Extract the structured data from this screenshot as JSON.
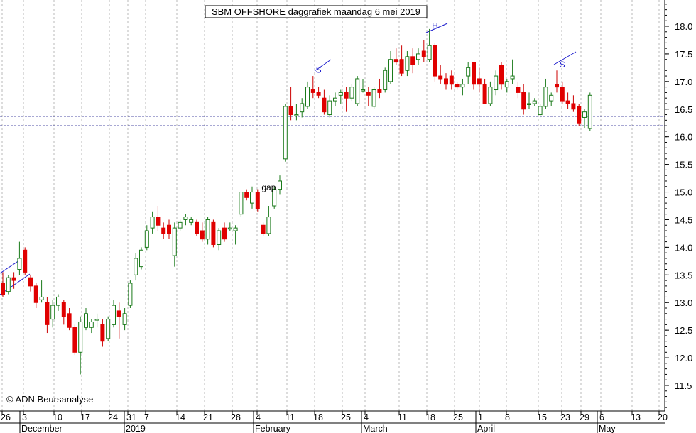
{
  "chart_data": {
    "type": "candlestick",
    "title": "SBM OFFSHORE daggrafiek maandag 6 mei 2019",
    "copyright": "© ADN Beursanalyse",
    "ylim": [
      11.1,
      18.5
    ],
    "y_ticks": [
      "11.5",
      "12.0",
      "12.5",
      "13.0",
      "13.5",
      "14.0",
      "14.5",
      "15.0",
      "15.5",
      "16.0",
      "16.5",
      "17.0",
      "17.5",
      "18.0"
    ],
    "x_ticks": [
      "26",
      "3",
      "10",
      "17",
      "24",
      "31",
      "7",
      "14",
      "21",
      "28",
      "4",
      "11",
      "18",
      "25",
      "4",
      "11",
      "18",
      "25",
      "1",
      "8",
      "15",
      "23",
      "29",
      "6",
      "13",
      "20"
    ],
    "months": [
      {
        "label": "December",
        "tick_index": 1
      },
      {
        "label": "2019",
        "tick_index": 5
      },
      {
        "label": "February",
        "tick_index": 10
      },
      {
        "label": "March",
        "tick_index": 14
      },
      {
        "label": "April",
        "tick_index": 18
      },
      {
        "label": "May",
        "tick_index": 23
      }
    ],
    "annotations": [
      {
        "text": "gap",
        "date_index": 48
      },
      {
        "text": "S",
        "date_index": 57
      },
      {
        "text": "H",
        "date_index": 78
      },
      {
        "text": "S",
        "date_index": 101
      }
    ],
    "support_lines": [
      12.92,
      16.2,
      16.37
    ],
    "grid": true,
    "candles": [
      [
        13.35,
        13.55,
        13.1,
        13.15
      ],
      [
        13.2,
        13.5,
        13.15,
        13.45
      ],
      [
        13.45,
        13.55,
        13.25,
        13.4
      ],
      [
        13.6,
        14.1,
        13.5,
        13.8
      ],
      [
        13.95,
        14.0,
        13.5,
        13.55
      ],
      [
        13.45,
        13.5,
        13.2,
        13.3
      ],
      [
        13.3,
        13.35,
        12.9,
        13.0
      ],
      [
        13.05,
        13.4,
        13.0,
        13.1
      ],
      [
        13.0,
        13.1,
        12.45,
        12.6
      ],
      [
        12.7,
        13.05,
        12.55,
        12.95
      ],
      [
        12.95,
        13.15,
        12.85,
        13.1
      ],
      [
        13.0,
        13.05,
        12.6,
        12.75
      ],
      [
        12.8,
        12.9,
        12.5,
        12.55
      ],
      [
        12.55,
        12.6,
        12.05,
        12.1
      ],
      [
        12.1,
        12.75,
        11.7,
        12.65
      ],
      [
        12.55,
        12.9,
        12.5,
        12.8
      ],
      [
        12.55,
        12.7,
        12.45,
        12.65
      ],
      [
        12.7,
        12.8,
        12.55,
        12.7
      ],
      [
        12.6,
        12.7,
        12.2,
        12.3
      ],
      [
        12.35,
        12.75,
        12.3,
        12.7
      ],
      [
        12.6,
        13.05,
        12.55,
        12.95
      ],
      [
        12.85,
        13.0,
        12.35,
        12.75
      ],
      [
        12.6,
        12.9,
        12.5,
        12.8
      ],
      [
        12.95,
        13.4,
        12.9,
        13.35
      ],
      [
        13.5,
        13.9,
        13.4,
        13.8
      ],
      [
        13.65,
        14.0,
        13.6,
        13.95
      ],
      [
        14.0,
        14.4,
        13.95,
        14.3
      ],
      [
        14.35,
        14.65,
        14.25,
        14.55
      ],
      [
        14.55,
        14.75,
        14.3,
        14.4
      ],
      [
        14.35,
        14.45,
        14.15,
        14.25
      ],
      [
        14.4,
        14.5,
        14.15,
        14.25
      ],
      [
        13.85,
        14.45,
        13.65,
        14.35
      ],
      [
        14.35,
        14.5,
        14.3,
        14.45
      ],
      [
        14.5,
        14.6,
        14.4,
        14.55
      ],
      [
        14.45,
        14.55,
        14.4,
        14.5
      ],
      [
        14.45,
        14.5,
        14.2,
        14.25
      ],
      [
        14.3,
        14.45,
        14.1,
        14.15
      ],
      [
        14.15,
        14.55,
        14.05,
        14.5
      ],
      [
        14.45,
        14.5,
        14.0,
        14.05
      ],
      [
        14.05,
        14.35,
        13.95,
        14.3
      ],
      [
        14.35,
        14.45,
        14.1,
        14.15
      ],
      [
        14.35,
        14.45,
        14.3,
        14.35
      ],
      [
        14.3,
        14.4,
        14.05,
        14.35
      ],
      [
        14.6,
        15.0,
        14.55,
        15.0
      ],
      [
        15.0,
        15.05,
        14.85,
        14.9
      ],
      [
        14.8,
        15.1,
        14.7,
        15.0
      ],
      [
        15.0,
        15.05,
        14.65,
        14.7
      ],
      [
        14.4,
        14.45,
        14.2,
        14.25
      ],
      [
        14.25,
        14.75,
        14.2,
        14.55
      ],
      [
        14.75,
        15.1,
        14.7,
        15.05
      ],
      [
        15.05,
        15.3,
        14.95,
        15.2
      ],
      [
        15.6,
        16.6,
        15.55,
        16.55
      ],
      [
        16.55,
        16.9,
        16.3,
        16.4
      ],
      [
        16.4,
        16.6,
        16.3,
        16.4
      ],
      [
        16.45,
        16.7,
        16.35,
        16.6
      ],
      [
        16.55,
        17.0,
        16.5,
        16.9
      ],
      [
        16.85,
        17.1,
        16.7,
        16.8
      ],
      [
        16.8,
        16.9,
        16.7,
        16.75
      ],
      [
        16.7,
        16.85,
        16.4,
        16.45
      ],
      [
        16.4,
        16.75,
        16.35,
        16.65
      ],
      [
        16.65,
        16.8,
        16.55,
        16.7
      ],
      [
        16.75,
        16.85,
        16.6,
        16.8
      ],
      [
        16.8,
        16.9,
        16.45,
        16.7
      ],
      [
        16.7,
        16.95,
        16.65,
        16.9
      ],
      [
        16.6,
        17.1,
        16.55,
        17.05
      ],
      [
        16.85,
        17.05,
        16.8,
        16.85
      ],
      [
        16.8,
        16.9,
        16.55,
        16.75
      ],
      [
        16.55,
        16.9,
        16.5,
        16.85
      ],
      [
        16.85,
        17.05,
        16.7,
        16.8
      ],
      [
        16.85,
        17.25,
        16.8,
        17.2
      ],
      [
        17.0,
        17.55,
        16.95,
        17.4
      ],
      [
        17.4,
        17.6,
        17.3,
        17.35
      ],
      [
        17.4,
        17.65,
        17.1,
        17.15
      ],
      [
        17.2,
        17.55,
        17.1,
        17.45
      ],
      [
        17.45,
        17.6,
        17.15,
        17.3
      ],
      [
        17.4,
        17.6,
        17.3,
        17.5
      ],
      [
        17.55,
        17.75,
        17.35,
        17.45
      ],
      [
        17.4,
        17.95,
        17.35,
        17.65
      ],
      [
        17.65,
        17.7,
        17.0,
        17.1
      ],
      [
        17.1,
        17.3,
        16.95,
        17.05
      ],
      [
        17.05,
        17.15,
        16.85,
        16.95
      ],
      [
        17.1,
        17.2,
        16.85,
        16.95
      ],
      [
        16.95,
        17.0,
        16.85,
        16.9
      ],
      [
        16.9,
        17.05,
        16.75,
        16.95
      ],
      [
        17.1,
        17.35,
        16.95,
        17.25
      ],
      [
        17.35,
        17.35,
        16.85,
        16.95
      ],
      [
        17.05,
        17.25,
        16.8,
        16.95
      ],
      [
        16.95,
        17.05,
        16.6,
        16.6
      ],
      [
        16.6,
        17.0,
        16.55,
        16.9
      ],
      [
        16.85,
        17.2,
        16.75,
        17.1
      ],
      [
        17.3,
        17.35,
        16.85,
        16.95
      ],
      [
        16.9,
        17.05,
        16.8,
        17.0
      ],
      [
        17.05,
        17.4,
        16.95,
        17.1
      ],
      [
        16.9,
        17.0,
        16.7,
        16.8
      ],
      [
        16.8,
        16.95,
        16.4,
        16.5
      ],
      [
        16.6,
        16.8,
        16.5,
        16.6
      ],
      [
        16.6,
        16.7,
        16.55,
        16.65
      ],
      [
        16.4,
        16.6,
        16.35,
        16.55
      ],
      [
        16.55,
        17.05,
        16.5,
        16.9
      ],
      [
        16.65,
        16.8,
        16.55,
        16.75
      ],
      [
        16.95,
        17.2,
        16.8,
        16.9
      ],
      [
        16.9,
        17.0,
        16.6,
        16.65
      ],
      [
        16.65,
        16.8,
        16.5,
        16.6
      ],
      [
        16.6,
        16.75,
        16.45,
        16.5
      ],
      [
        16.55,
        16.6,
        16.2,
        16.25
      ],
      [
        16.35,
        16.5,
        16.15,
        16.45
      ],
      [
        16.15,
        16.8,
        16.1,
        16.75
      ]
    ]
  }
}
